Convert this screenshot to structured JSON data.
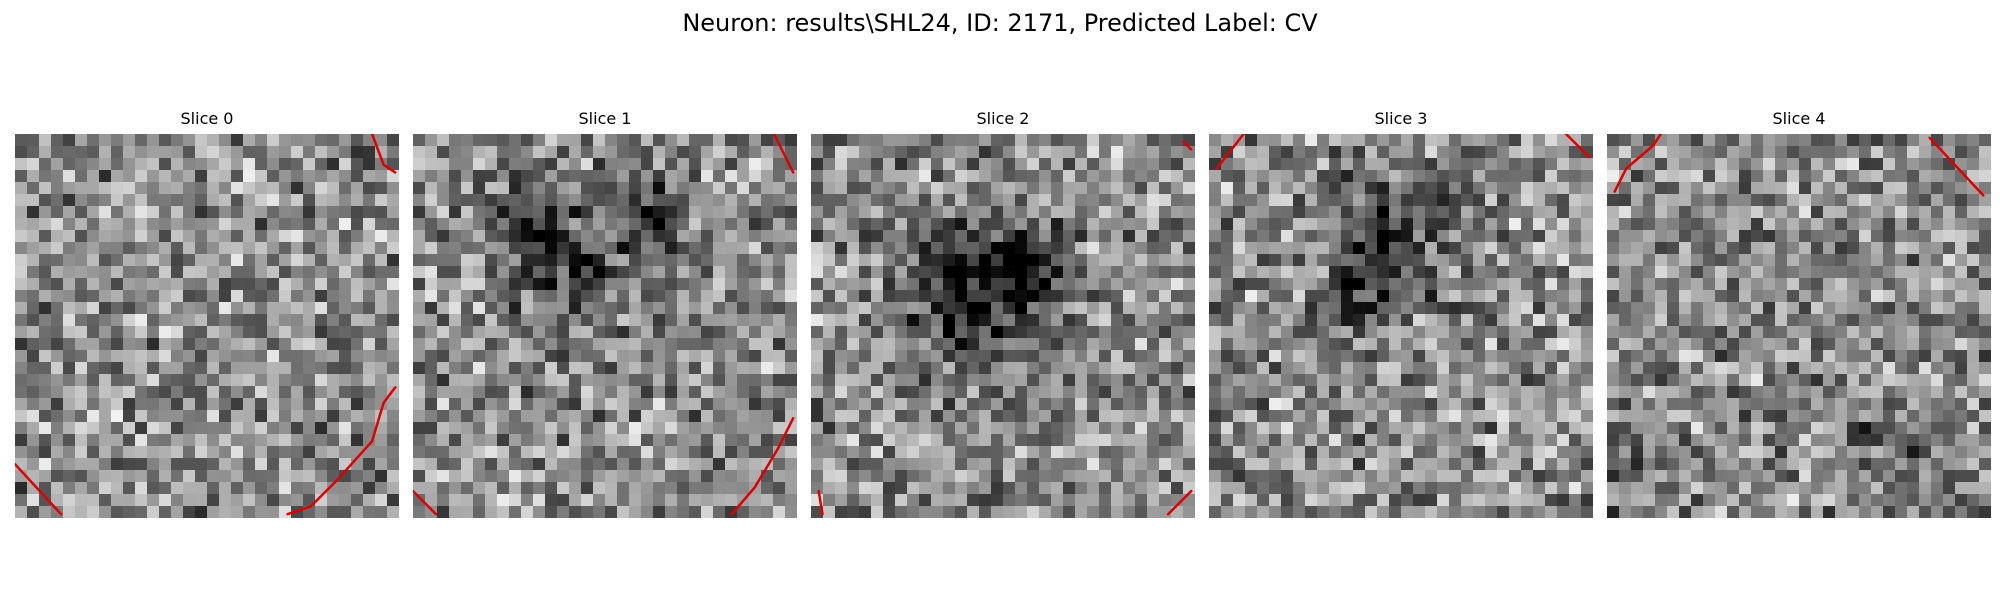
{
  "figure": {
    "title": "Neuron: results\\SHL24, ID: 2171, Predicted Label: CV"
  },
  "panels": [
    {
      "title": "Slice 0",
      "seed": 11,
      "dark": [],
      "dark_strength": 0.0,
      "lines": [
        [
          [
            0.0,
            0.86
          ],
          [
            0.12,
            0.99
          ]
        ],
        [
          [
            0.93,
            0.0
          ],
          [
            0.96,
            0.08
          ],
          [
            0.99,
            0.1
          ]
        ],
        [
          [
            0.71,
            0.99
          ],
          [
            0.77,
            0.97
          ],
          [
            0.84,
            0.9
          ],
          [
            0.93,
            0.8
          ],
          [
            0.96,
            0.7
          ],
          [
            0.99,
            0.66
          ]
        ]
      ]
    },
    {
      "title": "Slice 1",
      "seed": 23,
      "dark": [
        [
          0.42,
          0.36,
          0.14
        ],
        [
          0.62,
          0.22,
          0.09
        ],
        [
          0.28,
          0.25,
          0.08
        ]
      ],
      "dark_strength": 0.38,
      "lines": [
        [
          [
            0.94,
            0.0
          ],
          [
            0.97,
            0.06
          ],
          [
            0.99,
            0.1
          ]
        ],
        [
          [
            0.0,
            0.93
          ],
          [
            0.06,
            0.99
          ]
        ],
        [
          [
            0.83,
            0.99
          ],
          [
            0.89,
            0.92
          ],
          [
            0.95,
            0.82
          ],
          [
            0.99,
            0.74
          ]
        ]
      ]
    },
    {
      "title": "Slice 2",
      "seed": 37,
      "dark": [
        [
          0.42,
          0.42,
          0.16
        ],
        [
          0.56,
          0.33,
          0.1
        ]
      ],
      "dark_strength": 0.48,
      "lines": [
        [
          [
            0.97,
            0.02
          ],
          [
            0.99,
            0.04
          ]
        ],
        [
          [
            0.93,
            0.99
          ],
          [
            0.99,
            0.93
          ]
        ],
        [
          [
            0.02,
            0.93
          ],
          [
            0.03,
            0.99
          ]
        ]
      ]
    },
    {
      "title": "Slice 3",
      "seed": 41,
      "dark": [
        [
          0.48,
          0.28,
          0.16
        ],
        [
          0.36,
          0.44,
          0.08
        ]
      ],
      "dark_strength": 0.36,
      "lines": [
        [
          [
            0.02,
            0.09
          ],
          [
            0.09,
            0.0
          ]
        ],
        [
          [
            0.93,
            0.0
          ],
          [
            0.99,
            0.06
          ]
        ]
      ]
    },
    {
      "title": "Slice 4",
      "seed": 53,
      "dark": [
        [
          0.05,
          0.82,
          0.12
        ],
        [
          0.75,
          0.8,
          0.1
        ]
      ],
      "dark_strength": 0.2,
      "lines": [
        [
          [
            0.02,
            0.15
          ],
          [
            0.05,
            0.09
          ],
          [
            0.12,
            0.03
          ],
          [
            0.14,
            0.0
          ]
        ],
        [
          [
            0.84,
            0.01
          ],
          [
            0.98,
            0.16
          ]
        ]
      ]
    }
  ],
  "colors": {
    "contour": "#e00000",
    "background": "#ffffff"
  }
}
